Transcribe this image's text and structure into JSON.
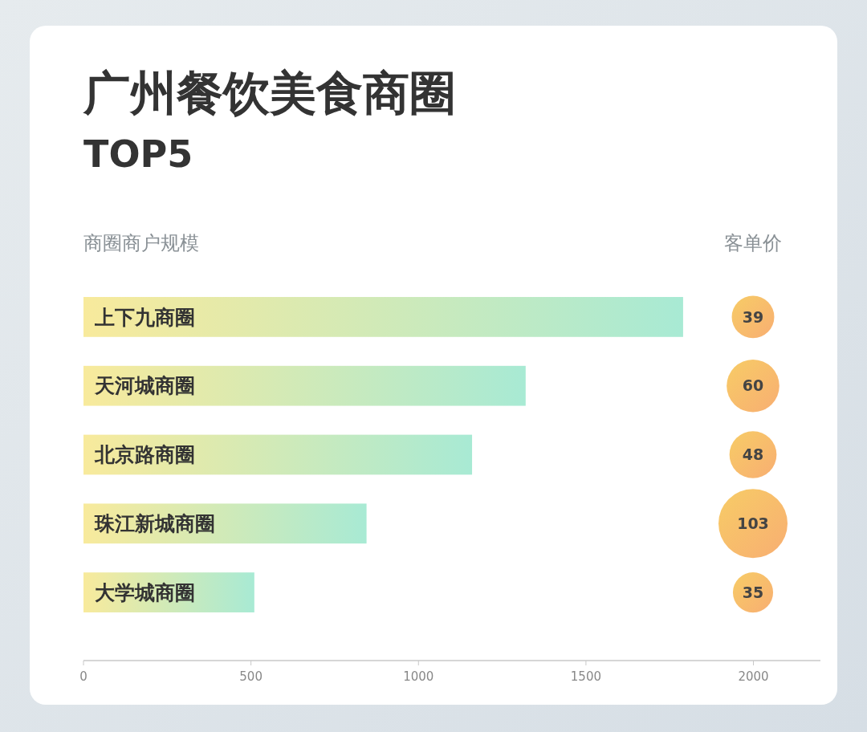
{
  "chart_data": [
    {
      "type": "bar",
      "title": "广州餐饮美食商圈",
      "subtitle": "TOP5",
      "xlabel": "商圈商户规模",
      "orientation": "horizontal",
      "categories": [
        "上下九商圈",
        "天河城商圈",
        "北京路商圈",
        "珠江新城商圈",
        "大学城商圈"
      ],
      "values": [
        1790,
        1320,
        1160,
        845,
        510
      ],
      "color": "#a8ead4",
      "xlim": [
        0,
        2200
      ],
      "xticks": [
        0,
        500,
        1000,
        1500,
        2000
      ]
    },
    {
      "type": "other",
      "title": "客单价",
      "categories": [
        null,
        null,
        null,
        null,
        null
      ],
      "values": [
        39,
        60,
        48,
        103,
        35
      ],
      "color": "#f8ae72",
      "data_labels": true
    }
  ]
}
